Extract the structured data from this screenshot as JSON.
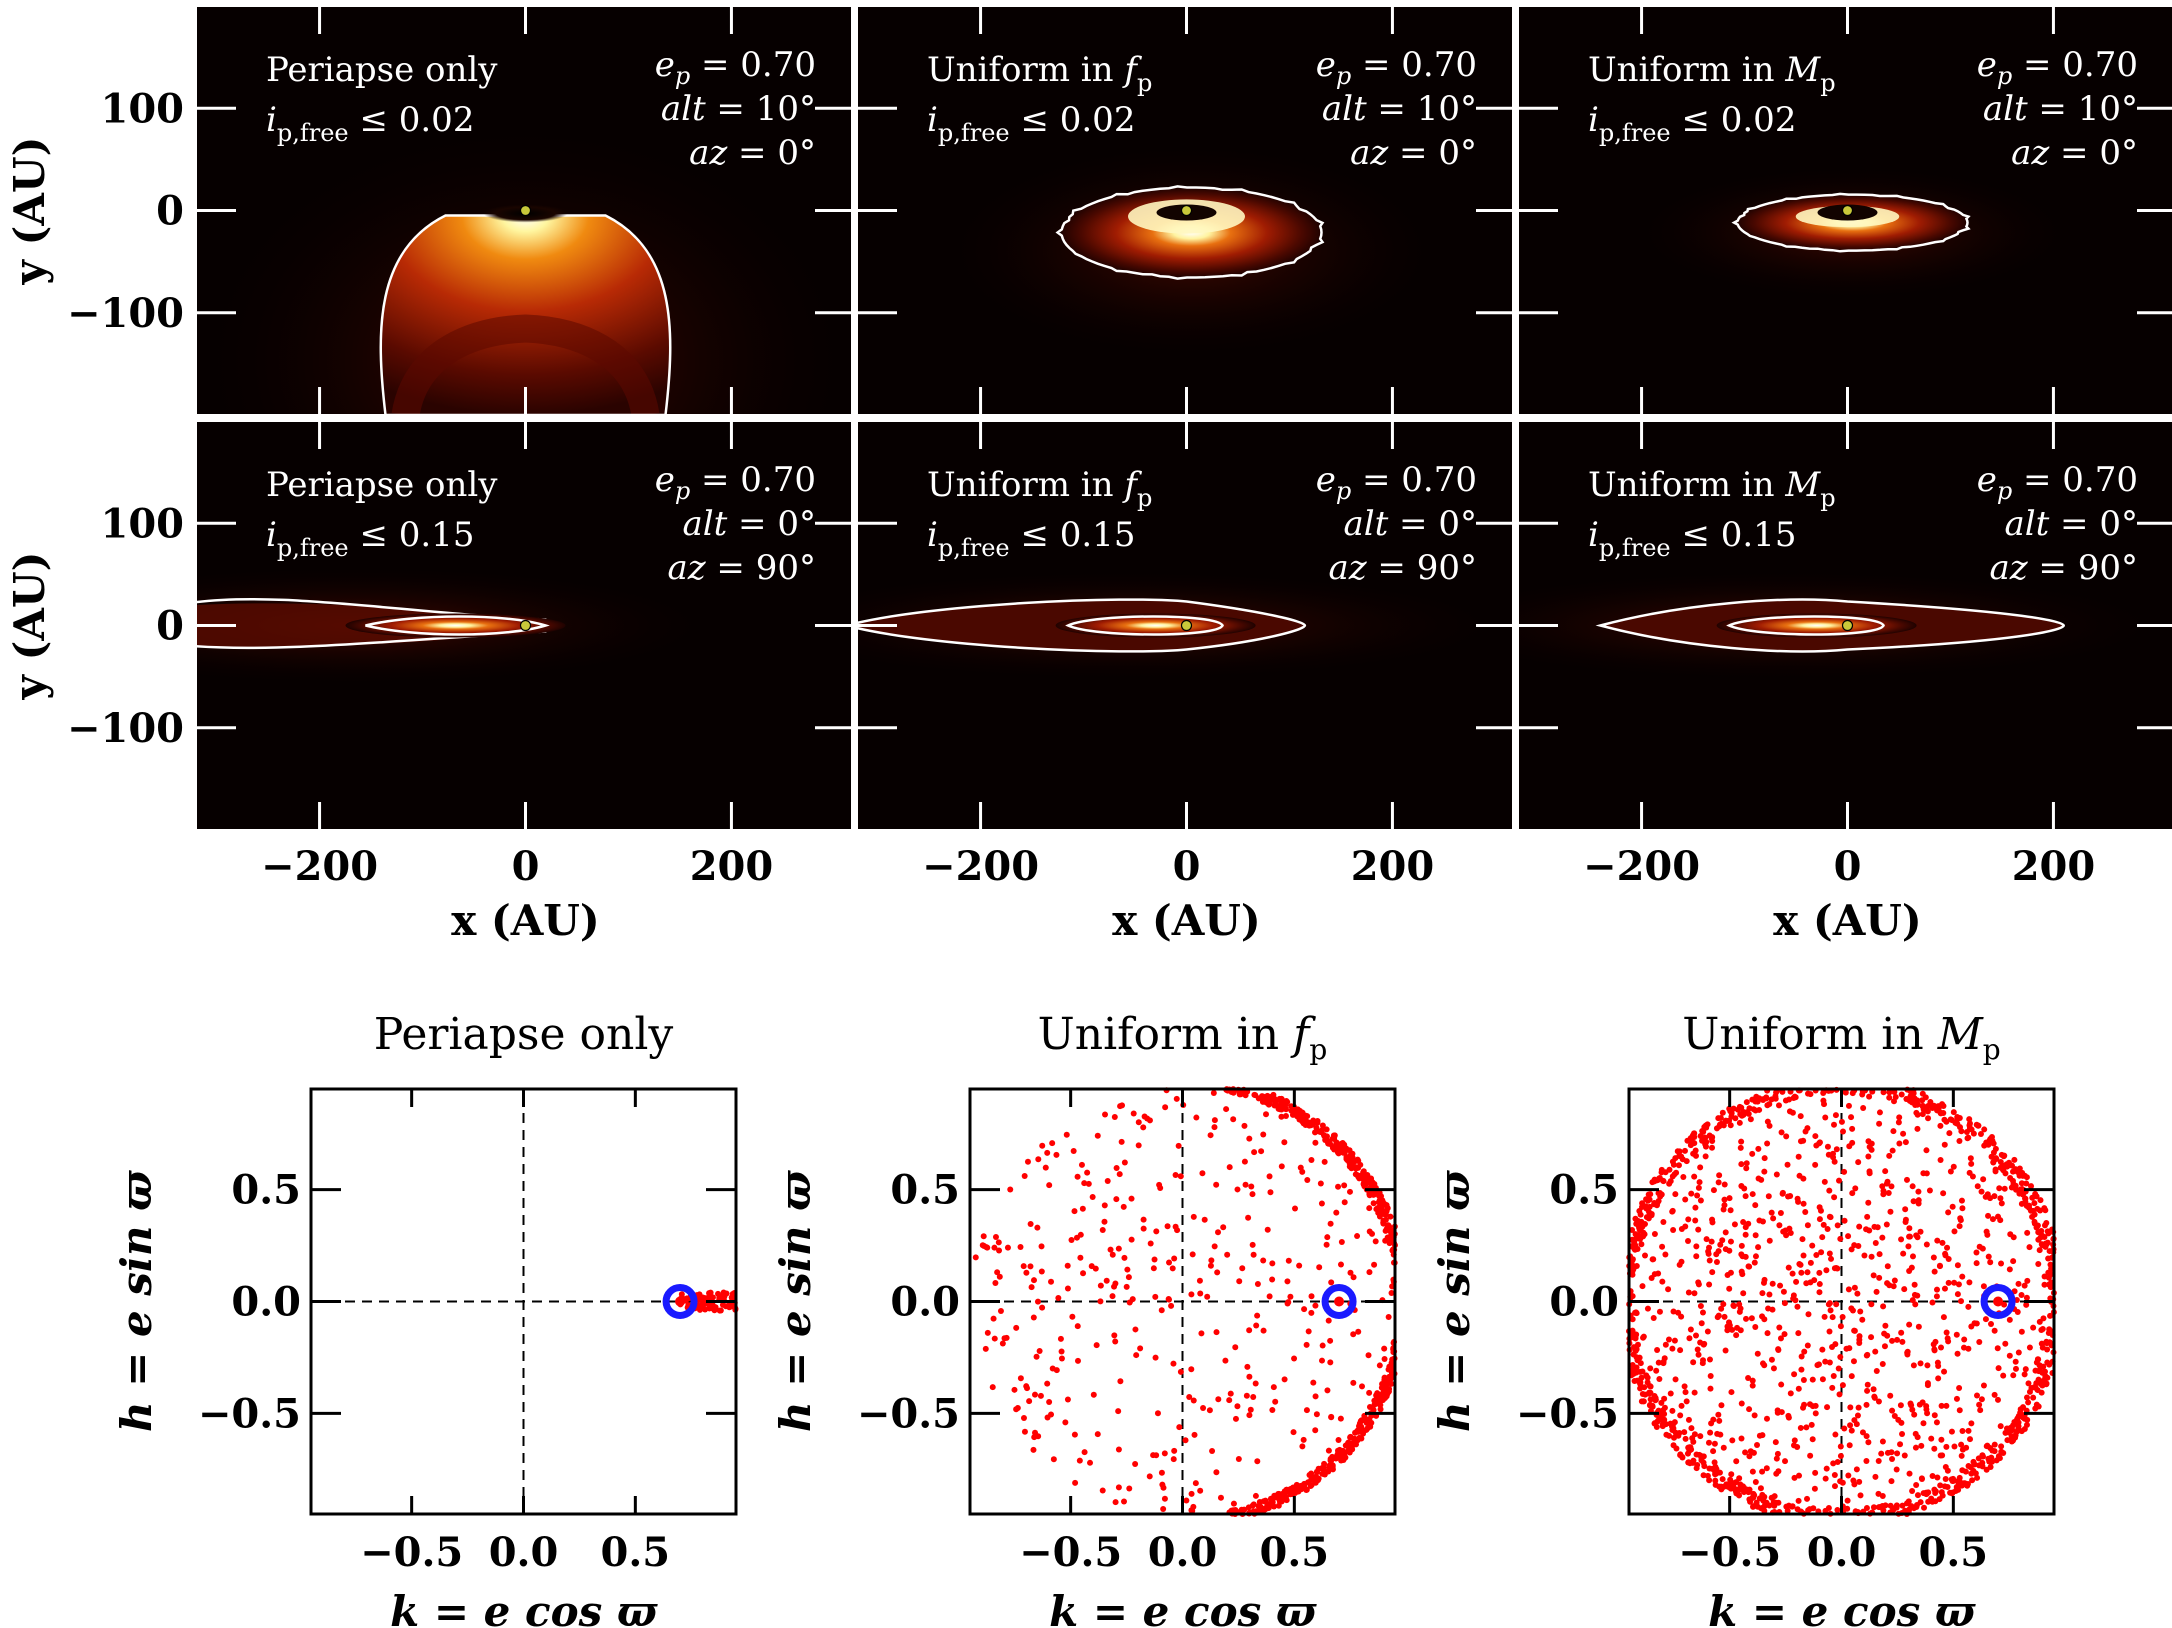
{
  "top_xlabel": "x (AU)",
  "top_ylabel": "y (AU)",
  "top_xticks": [
    "−200",
    "0",
    "200"
  ],
  "top_yticks": [
    "100",
    "0",
    "−100"
  ],
  "bottom_xlabel": "k = e cos ϖ",
  "bottom_ylabel": "h = e sin ϖ",
  "bottom_xticks": [
    "−0.5",
    "0.0",
    "0.5"
  ],
  "bottom_yticks": [
    "0.5",
    "0.0",
    "−0.5"
  ],
  "colors": {
    "contour": "#ffffff",
    "star": "#c8c83a",
    "points": "#ff0000",
    "marker": "#1a1aff",
    "background": "#050000"
  },
  "chart_data": [
    {
      "type": "heatmap",
      "row": 1,
      "col": 1,
      "text_left": [
        "Periapse only",
        "i_p,free ≤ 0.02"
      ],
      "text_right": [
        "e_p = 0.70",
        "alt = 10°",
        "az = 0°"
      ],
      "xlim": [
        -320,
        320
      ],
      "ylim": [
        -200,
        200
      ]
    },
    {
      "type": "heatmap",
      "row": 1,
      "col": 2,
      "text_left": [
        "Uniform in f_p",
        "i_p,free ≤ 0.02"
      ],
      "text_right": [
        "e_p = 0.70",
        "alt = 10°",
        "az = 0°"
      ],
      "xlim": [
        -320,
        320
      ],
      "ylim": [
        -200,
        200
      ]
    },
    {
      "type": "heatmap",
      "row": 1,
      "col": 3,
      "text_left": [
        "Uniform in M_p",
        "i_p,free ≤ 0.02"
      ],
      "text_right": [
        "e_p = 0.70",
        "alt = 10°",
        "az = 0°"
      ],
      "xlim": [
        -320,
        320
      ],
      "ylim": [
        -200,
        200
      ]
    },
    {
      "type": "heatmap",
      "row": 2,
      "col": 1,
      "text_left": [
        "Periapse only",
        "i_p,free ≤ 0.15"
      ],
      "text_right": [
        "e_p = 0.70",
        "alt = 0°",
        "az = 90°"
      ],
      "xlim": [
        -320,
        320
      ],
      "ylim": [
        -200,
        200
      ]
    },
    {
      "type": "heatmap",
      "row": 2,
      "col": 2,
      "text_left": [
        "Uniform in f_p",
        "i_p,free ≤ 0.15"
      ],
      "text_right": [
        "e_p = 0.70",
        "alt = 0°",
        "az = 90°"
      ],
      "xlim": [
        -320,
        320
      ],
      "ylim": [
        -200,
        200
      ]
    },
    {
      "type": "heatmap",
      "row": 2,
      "col": 3,
      "text_left": [
        "Uniform in M_p",
        "i_p,free ≤ 0.15"
      ],
      "text_right": [
        "e_p = 0.70",
        "alt = 0°",
        "az = 90°"
      ],
      "xlim": [
        -320,
        320
      ],
      "ylim": [
        -200,
        200
      ]
    },
    {
      "type": "scatter",
      "title": "Periapse only",
      "distribution": "periapse",
      "xlim": [
        -0.95,
        0.95
      ],
      "ylim": [
        -0.95,
        0.95
      ],
      "marker": {
        "k": 0.7,
        "h": 0.0
      }
    },
    {
      "type": "scatter",
      "title": "Uniform in f_p",
      "distribution": "uniform_f",
      "xlim": [
        -0.95,
        0.95
      ],
      "ylim": [
        -0.95,
        0.95
      ],
      "marker": {
        "k": 0.7,
        "h": 0.0
      }
    },
    {
      "type": "scatter",
      "title": "Uniform in M_p",
      "distribution": "uniform_M",
      "xlim": [
        -0.95,
        0.95
      ],
      "ylim": [
        -0.95,
        0.95
      ],
      "marker": {
        "k": 0.7,
        "h": 0.0
      }
    }
  ]
}
